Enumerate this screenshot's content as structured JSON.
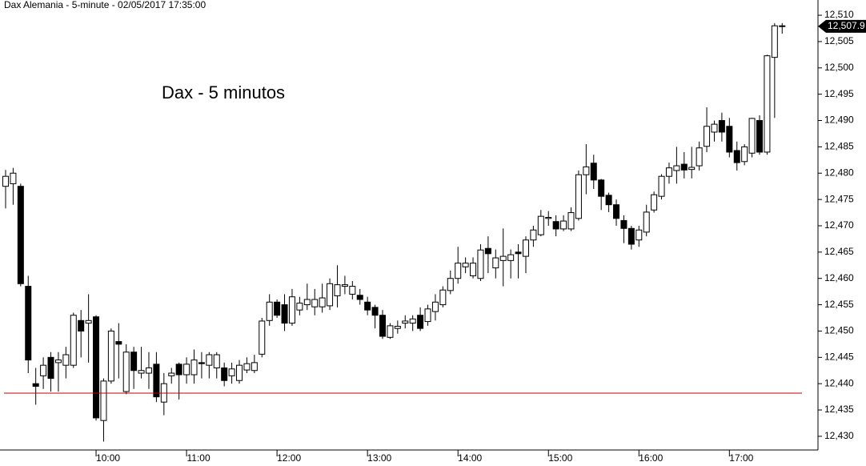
{
  "chart_data": {
    "type": "candlestick",
    "title": "Dax Alemania - 5-minute - 02/05/2017 17:35:00",
    "annotation": "Dax - 5 minutos",
    "categories": [
      null,
      null,
      null,
      null,
      null,
      null,
      null,
      null,
      null,
      null,
      null,
      null,
      "10:00",
      null,
      null,
      null,
      null,
      null,
      null,
      null,
      null,
      null,
      null,
      null,
      "11:00",
      null,
      null,
      null,
      null,
      null,
      null,
      null,
      null,
      null,
      null,
      null,
      "12:00",
      null,
      null,
      null,
      null,
      null,
      null,
      null,
      null,
      null,
      null,
      null,
      "13:00",
      null,
      null,
      null,
      null,
      null,
      null,
      null,
      null,
      null,
      null,
      null,
      "14:00",
      null,
      null,
      null,
      null,
      null,
      null,
      null,
      null,
      null,
      null,
      null,
      "15:00",
      null,
      null,
      null,
      null,
      null,
      null,
      null,
      null,
      null,
      null,
      null,
      "16:00",
      null,
      null,
      null,
      null,
      null,
      null,
      null,
      null,
      null,
      null,
      null,
      "17:00",
      null,
      null,
      null,
      null,
      null,
      null,
      null
    ],
    "open": [
      12477.5,
      12478,
      12477.5,
      12458.5,
      12440,
      12441.5,
      12445,
      12444,
      12443.5,
      12443.5,
      12452,
      12451.5,
      12452.7,
      12433,
      12440.5,
      12448,
      12438.5,
      12446,
      12442,
      12442,
      12443.7,
      12436.5,
      12441.5,
      12443.7,
      12441.7,
      12441.7,
      12444,
      12443.5,
      12443,
      12443,
      12441.5,
      12440.6,
      12442.6,
      12442.5,
      12445.6,
      12452,
      12455.5,
      12455,
      12451.5,
      12454,
      12455,
      12454.6,
      12454.6,
      12454.8,
      12456.7,
      12458.5,
      12457,
      12456.8,
      12455.5,
      12454.5,
      12453,
      12448.8,
      12450.5,
      12451.5,
      12451.5,
      12453,
      12451.8,
      12453.7,
      12455,
      12457.7,
      12460,
      12462.2,
      12460.5,
      12460,
      12465.7,
      12462,
      12463.4,
      12463.4,
      12465,
      12464.2,
      12467.3,
      12468.3,
      12471.4,
      12470.8,
      12469.4,
      12469.4,
      12471.4,
      12479.7,
      12481.9,
      12478.7,
      12475.8,
      12474,
      12471,
      12469.5,
      12467.3,
      12468.8,
      12473,
      12475.6,
      12479.4,
      12480.5,
      12481.7,
      12480.7,
      12481.4,
      12485.1,
      12487.8,
      12490,
      12488.9,
      12484.3,
      12482.2,
      12483.8,
      12490,
      12484,
      12502,
      12508
    ],
    "high": [
      12480.6,
      12481,
      12478,
      12460.5,
      12443,
      12445,
      12446,
      12446,
      12447,
      12453.5,
      12454,
      12457,
      12453,
      12441,
      12450.5,
      12451.5,
      12447.5,
      12447,
      12447,
      12446,
      12446,
      12442,
      12443,
      12444,
      12445,
      12446.5,
      12446,
      12446,
      12446,
      12444,
      12444,
      12444.5,
      12445,
      12445.5,
      12452.5,
      12457,
      12456,
      12457,
      12458,
      12456.5,
      12459,
      12458,
      12459,
      12460,
      12462.5,
      12460.5,
      12459.5,
      12458,
      12456.5,
      12455,
      12454,
      12451.5,
      12452,
      12453,
      12453,
      12454.5,
      12455,
      12457,
      12458.5,
      12461.5,
      12466,
      12464,
      12464,
      12466.5,
      12468,
      12465.5,
      12469.5,
      12465.5,
      12466.5,
      12468,
      12470,
      12473,
      12472.8,
      12472,
      12472,
      12473.5,
      12480.5,
      12485.5,
      12483.5,
      12478.9,
      12476.3,
      12475,
      12472,
      12470,
      12470,
      12474,
      12476.5,
      12479.8,
      12482,
      12485,
      12484,
      12485,
      12486,
      12492.5,
      12490,
      12491.5,
      12490.5,
      12486,
      12485.5,
      12490.5,
      12491,
      12502.5,
      12508.5,
      12508.5
    ],
    "low": [
      12473.3,
      12474,
      12458.5,
      12442,
      12436,
      12439,
      12438.5,
      12438.5,
      12441,
      12443,
      12445,
      12444,
      12433,
      12429,
      12440,
      12441,
      12438,
      12439,
      12441,
      12439,
      12436.5,
      12434,
      12440,
      12437,
      12440,
      12440,
      12441,
      12441,
      12441,
      12439.5,
      12440,
      12440,
      12442,
      12442,
      12445,
      12451,
      12452.5,
      12450,
      12451,
      12453,
      12454,
      12453,
      12453.5,
      12454,
      12454.5,
      12457,
      12456,
      12455,
      12453,
      12450.5,
      12448.5,
      12448.5,
      12449.5,
      12450.5,
      12450,
      12450,
      12451,
      12452,
      12454.5,
      12457,
      12459,
      12461,
      12460,
      12459.5,
      12461,
      12460,
      12458.5,
      12460,
      12460,
      12461,
      12466,
      12468,
      12470,
      12468,
      12469,
      12469,
      12471,
      12476,
      12477,
      12473,
      12472.6,
      12470,
      12466.7,
      12465.5,
      12466,
      12468,
      12472.5,
      12475,
      12478,
      12478,
      12479,
      12479,
      12480.5,
      12484,
      12486,
      12486,
      12483,
      12480.5,
      12481.5,
      12483,
      12483.5,
      12483.5,
      12490.5,
      12506.5
    ],
    "close": [
      12479.4,
      12480,
      12459,
      12444.5,
      12439.5,
      12443.5,
      12441,
      12444.5,
      12445.5,
      12453,
      12450,
      12452,
      12433.5,
      12440.5,
      12450,
      12447.5,
      12446,
      12442.5,
      12442.5,
      12443,
      12437.5,
      12440,
      12442,
      12441.7,
      12443.7,
      12444.5,
      12443.8,
      12445.5,
      12445.5,
      12440.6,
      12442.8,
      12443.5,
      12443.8,
      12444,
      12451.9,
      12455.5,
      12453,
      12451.5,
      12456.5,
      12455.3,
      12456,
      12456,
      12456.3,
      12459,
      12458.8,
      12458.8,
      12458.5,
      12456,
      12454,
      12453,
      12449,
      12451,
      12450.9,
      12451.9,
      12452.3,
      12450.5,
      12454.2,
      12455.5,
      12457.8,
      12460,
      12462.9,
      12462.9,
      12462.9,
      12465.4,
      12464.7,
      12463.9,
      12464.2,
      12464.5,
      12464.7,
      12467.3,
      12469.2,
      12471.8,
      12471.6,
      12469.4,
      12470.9,
      12472.5,
      12479.7,
      12481.2,
      12478.7,
      12475.6,
      12474,
      12471.4,
      12469.5,
      12466.5,
      12469.2,
      12472.6,
      12475.9,
      12479.4,
      12481,
      12481.4,
      12480.6,
      12481.1,
      12484.8,
      12488.9,
      12489.3,
      12487.8,
      12484,
      12482,
      12485,
      12490.4,
      12484,
      12502.3,
      12508,
      12507.9
    ],
    "up_color": "#ffffff",
    "down_color": "#000000",
    "edge_color": "#000000",
    "ylim": [
      12427.4,
      12512.9
    ],
    "yticks": [
      {
        "value": 12430,
        "label": "12,430"
      },
      {
        "value": 12435,
        "label": "12,435"
      },
      {
        "value": 12440,
        "label": "12,440"
      },
      {
        "value": 12445,
        "label": "12,445"
      },
      {
        "value": 12450,
        "label": "12,450"
      },
      {
        "value": 12455,
        "label": "12,455"
      },
      {
        "value": 12460,
        "label": "12,460"
      },
      {
        "value": 12465,
        "label": "12,465"
      },
      {
        "value": 12470,
        "label": "12,470"
      },
      {
        "value": 12475,
        "label": "12,475"
      },
      {
        "value": 12480,
        "label": "12,480"
      },
      {
        "value": 12485,
        "label": "12,485"
      },
      {
        "value": 12490,
        "label": "12,490"
      },
      {
        "value": 12495,
        "label": "12,495"
      },
      {
        "value": 12500,
        "label": "12,500"
      },
      {
        "value": 12505,
        "label": "12,505"
      },
      {
        "value": 12510,
        "label": "12,510"
      }
    ],
    "hline": {
      "value": 12438.2,
      "color": "#c00000"
    },
    "last_price": {
      "value": 12507.9,
      "label": "12,507.9"
    }
  }
}
